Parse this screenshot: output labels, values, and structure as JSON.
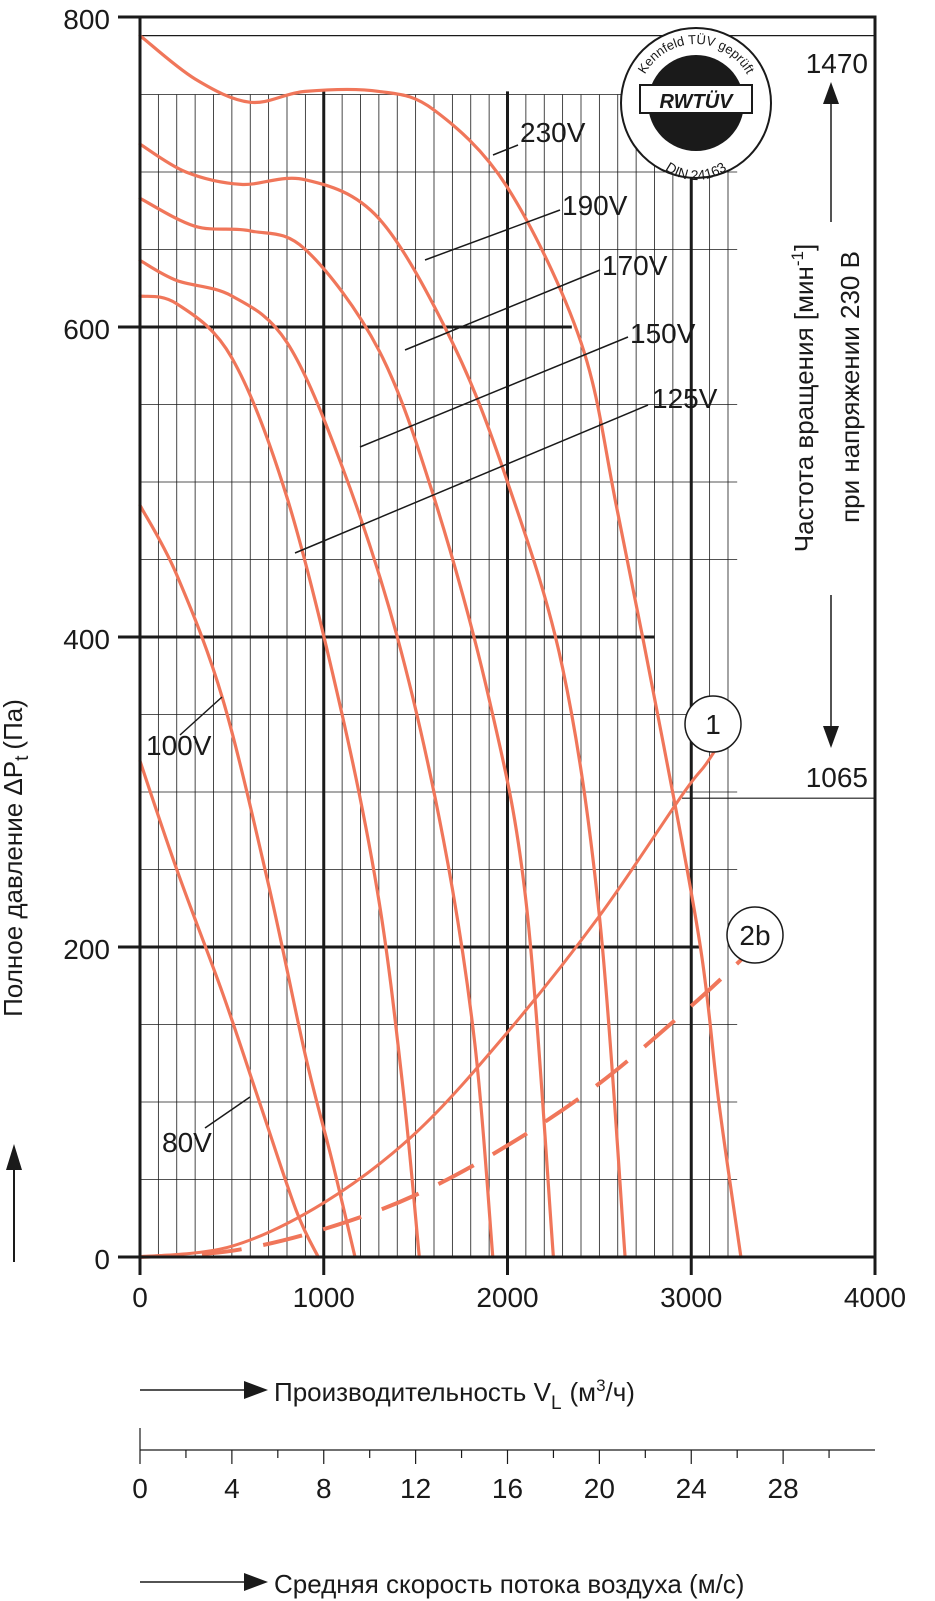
{
  "chart_data": {
    "type": "line",
    "xlim": [
      0,
      4000
    ],
    "ylim": [
      0,
      800
    ],
    "x_ticks": [
      "0",
      "1000",
      "2000",
      "3000",
      "4000"
    ],
    "y_ticks": [
      "0",
      "200",
      "400",
      "600",
      "800"
    ],
    "ylabel_main": "Полное давление ΔP",
    "ylabel_sub": "t",
    "ylabel_unit": "(Па)",
    "xlabel_main": "Производительность V",
    "xlabel_sub": "L",
    "xlabel_unit_pre": "(м",
    "xlabel_unit_sup": "3",
    "xlabel_unit_post": "/ч)",
    "velocity_ticks": [
      "0",
      "4",
      "8",
      "12",
      "16",
      "20",
      "24",
      "28"
    ],
    "velocity_label": "Средняя скорость потока воздуха (м/с)",
    "rpm_title_pre": "Частота вращения [мин",
    "rpm_title_sup": "-1",
    "rpm_title_post": "]",
    "rpm_subtitle": "при напряжении 230 В",
    "rpm_high": "1470",
    "rpm_low": "1065",
    "curve_color": "#f0765a",
    "grid_color": "#1a1a1a",
    "badge": {
      "top_text": "Kennfeld TÜV geprüft",
      "center_text": "RWTÜV",
      "bottom_text": "DIN 24163"
    },
    "series": [
      {
        "name": "230V",
        "x": [
          0,
          300,
          600,
          900,
          1300,
          1600,
          2000,
          2400,
          2600,
          2850,
          3050,
          3150,
          3270
        ],
        "y": [
          788,
          760,
          745,
          752,
          752,
          740,
          690,
          590,
          480,
          330,
          200,
          100,
          0
        ]
      },
      {
        "name": "190V",
        "x": [
          0,
          250,
          550,
          900,
          1300,
          1700,
          2000,
          2300,
          2500,
          2640
        ],
        "y": [
          718,
          700,
          692,
          695,
          670,
          590,
          500,
          380,
          220,
          0
        ]
      },
      {
        "name": "170V",
        "x": [
          0,
          300,
          600,
          900,
          1300,
          1600,
          1900,
          2100,
          2250
        ],
        "y": [
          683,
          665,
          662,
          650,
          585,
          490,
          360,
          230,
          0
        ]
      },
      {
        "name": "150V",
        "x": [
          0,
          200,
          500,
          800,
          1100,
          1400,
          1650,
          1820,
          1920
        ],
        "y": [
          643,
          630,
          620,
          590,
          510,
          400,
          270,
          140,
          0
        ]
      },
      {
        "name": "125V",
        "x": [
          0,
          200,
          500,
          800,
          1100,
          1300,
          1430,
          1520
        ],
        "y": [
          620,
          615,
          580,
          490,
          350,
          230,
          110,
          0
        ]
      },
      {
        "name": "100V",
        "x": [
          0,
          200,
          450,
          700,
          900,
          1050,
          1170
        ],
        "y": [
          485,
          440,
          360,
          240,
          130,
          60,
          0
        ]
      },
      {
        "name": "80V",
        "x": [
          0,
          200,
          450,
          650,
          850,
          970
        ],
        "y": [
          320,
          250,
          170,
          100,
          30,
          0
        ]
      }
    ],
    "system_curves": [
      {
        "name": "1",
        "style": "solid",
        "x": [
          0,
          500,
          1000,
          1500,
          2000,
          2500,
          2950,
          3080,
          3200
        ],
        "y": [
          0,
          7,
          35,
          80,
          145,
          220,
          298,
          318,
          340
        ]
      },
      {
        "name": "2b",
        "style": "dashed",
        "x": [
          0,
          500,
          1000,
          1500,
          2000,
          2500,
          3000,
          3300
        ],
        "y": [
          0,
          4,
          18,
          40,
          72,
          112,
          162,
          195
        ]
      }
    ]
  }
}
